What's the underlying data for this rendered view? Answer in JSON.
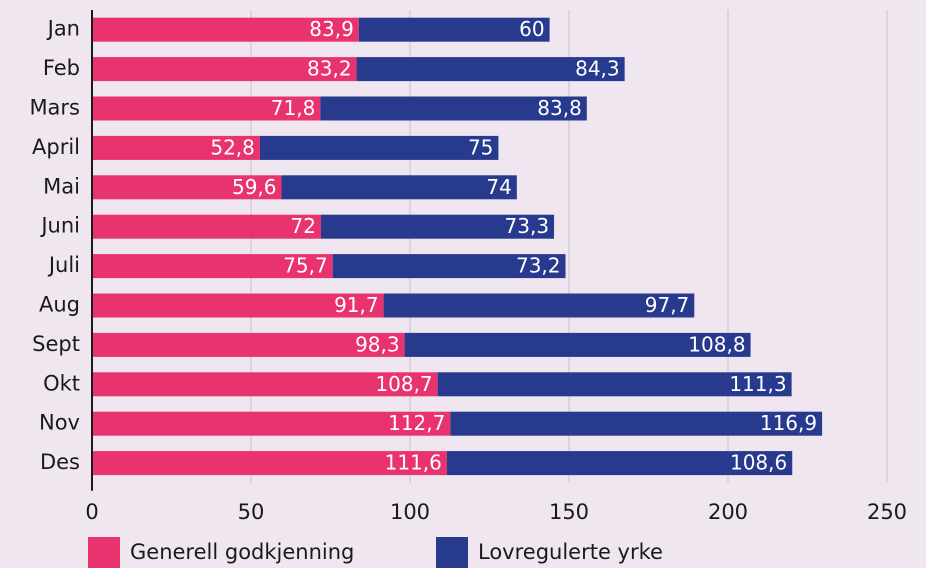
{
  "chart_data": {
    "type": "stacked-barh",
    "categories": [
      "Jan",
      "Feb",
      "Mars",
      "April",
      "Mai",
      "Juni",
      "Juli",
      "Aug",
      "Sept",
      "Okt",
      "Nov",
      "Des"
    ],
    "series": [
      {
        "name": "Generell godkjenning",
        "color": "#e8336f",
        "values": [
          83.9,
          83.2,
          71.8,
          52.8,
          59.6,
          72,
          75.7,
          91.7,
          98.3,
          108.7,
          112.7,
          111.6
        ],
        "value_labels": [
          "83,9",
          "83,2",
          "71,8",
          "52,8",
          "59,6",
          "72",
          "75,7",
          "91,7",
          "98,3",
          "108,7",
          "112,7",
          "111,6"
        ]
      },
      {
        "name": "Lovregulerte yrke",
        "color": "#273a8e",
        "values": [
          60,
          84.3,
          83.8,
          75,
          74,
          73.3,
          73.2,
          97.7,
          108.8,
          111.3,
          116.9,
          108.6
        ],
        "value_labels": [
          "60",
          "84,3",
          "83,8",
          "75",
          "74",
          "73,3",
          "73,2",
          "97,7",
          "108,8",
          "111,3",
          "116,9",
          "108,6"
        ]
      }
    ],
    "xlim": [
      0,
      250
    ],
    "xticks": [
      0,
      50,
      100,
      150,
      200,
      250
    ],
    "grid": true
  }
}
